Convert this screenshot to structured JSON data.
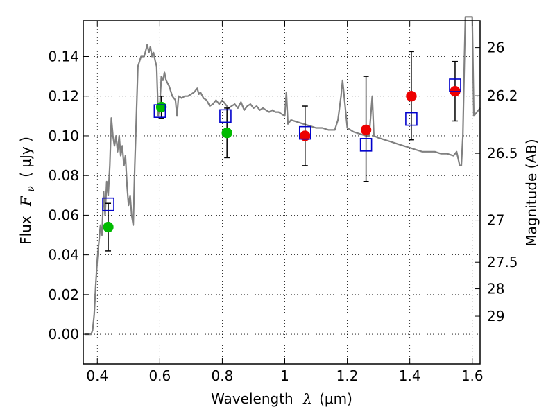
{
  "chart_data": {
    "type": "scatter",
    "xlabel": {
      "prefix": "Wavelength",
      "symbol": "λ",
      "unit": "(μm)"
    },
    "ylabel": {
      "prefix": "Flux",
      "symbol": "F",
      "subscript": "ν",
      "unit": "( μJy )"
    },
    "y2label": "Magnitude (AB)",
    "xlim": [
      0.355,
      1.625
    ],
    "ylim": [
      -0.015,
      0.158
    ],
    "xticks": [
      0.4,
      0.6,
      0.8,
      1.0,
      1.2,
      1.4,
      1.6
    ],
    "xtick_labels": [
      "0.4",
      "0.6",
      "0.8",
      "1",
      "1.2",
      "1.4",
      "1.6"
    ],
    "yticks": [
      0.0,
      0.02,
      0.04,
      0.06,
      0.08,
      0.1,
      0.12,
      0.14
    ],
    "ytick_labels": [
      "0.00",
      "0.02",
      "0.04",
      "0.06",
      "0.08",
      "0.10",
      "0.12",
      "0.14"
    ],
    "y2ticks": [
      {
        "label": "26",
        "flux": 0.1445
      },
      {
        "label": "26.2",
        "flux": 0.1202
      },
      {
        "label": "26.5",
        "flux": 0.0912
      },
      {
        "label": "27",
        "flux": 0.0575
      },
      {
        "label": "27.5",
        "flux": 0.0363
      },
      {
        "label": "28",
        "flux": 0.0229
      },
      {
        "label": "29",
        "flux": 0.0091
      }
    ],
    "grid": true,
    "colors": {
      "model": "#808080",
      "green_points": "#00bb00",
      "red_points": "#ee0000",
      "model_boxes": "#0000cc",
      "errorbars": "#000000"
    },
    "series": [
      {
        "type": "line",
        "points": [
          [
            0.36,
            0.0
          ],
          [
            0.38,
            0.0
          ],
          [
            0.385,
            0.002
          ],
          [
            0.39,
            0.01
          ],
          [
            0.395,
            0.025
          ],
          [
            0.4,
            0.038
          ],
          [
            0.41,
            0.055
          ],
          [
            0.415,
            0.05
          ],
          [
            0.42,
            0.072
          ],
          [
            0.425,
            0.06
          ],
          [
            0.43,
            0.077
          ],
          [
            0.435,
            0.07
          ],
          [
            0.44,
            0.085
          ],
          [
            0.445,
            0.109
          ],
          [
            0.45,
            0.1
          ],
          [
            0.455,
            0.095
          ],
          [
            0.46,
            0.1
          ],
          [
            0.465,
            0.092
          ],
          [
            0.47,
            0.1
          ],
          [
            0.475,
            0.09
          ],
          [
            0.48,
            0.095
          ],
          [
            0.485,
            0.085
          ],
          [
            0.49,
            0.09
          ],
          [
            0.495,
            0.075
          ],
          [
            0.5,
            0.065
          ],
          [
            0.505,
            0.07
          ],
          [
            0.51,
            0.06
          ],
          [
            0.515,
            0.055
          ],
          [
            0.52,
            0.085
          ],
          [
            0.525,
            0.11
          ],
          [
            0.53,
            0.135
          ],
          [
            0.54,
            0.14
          ],
          [
            0.55,
            0.14
          ],
          [
            0.555,
            0.143
          ],
          [
            0.56,
            0.146
          ],
          [
            0.565,
            0.142
          ],
          [
            0.57,
            0.145
          ],
          [
            0.575,
            0.14
          ],
          [
            0.58,
            0.142
          ],
          [
            0.585,
            0.138
          ],
          [
            0.59,
            0.135
          ],
          [
            0.595,
            0.11
          ],
          [
            0.6,
            0.115
          ],
          [
            0.605,
            0.13
          ],
          [
            0.61,
            0.128
          ],
          [
            0.615,
            0.132
          ],
          [
            0.62,
            0.128
          ],
          [
            0.63,
            0.125
          ],
          [
            0.64,
            0.12
          ],
          [
            0.65,
            0.118
          ],
          [
            0.655,
            0.11
          ],
          [
            0.66,
            0.12
          ],
          [
            0.67,
            0.119
          ],
          [
            0.68,
            0.12
          ],
          [
            0.69,
            0.12
          ],
          [
            0.7,
            0.121
          ],
          [
            0.71,
            0.122
          ],
          [
            0.72,
            0.124
          ],
          [
            0.725,
            0.121
          ],
          [
            0.73,
            0.122
          ],
          [
            0.74,
            0.119
          ],
          [
            0.75,
            0.118
          ],
          [
            0.76,
            0.115
          ],
          [
            0.77,
            0.116
          ],
          [
            0.78,
            0.118
          ],
          [
            0.79,
            0.116
          ],
          [
            0.8,
            0.118
          ],
          [
            0.81,
            0.116
          ],
          [
            0.82,
            0.114
          ],
          [
            0.83,
            0.115
          ],
          [
            0.84,
            0.116
          ],
          [
            0.85,
            0.114
          ],
          [
            0.86,
            0.117
          ],
          [
            0.87,
            0.113
          ],
          [
            0.88,
            0.115
          ],
          [
            0.89,
            0.116
          ],
          [
            0.9,
            0.114
          ],
          [
            0.91,
            0.115
          ],
          [
            0.92,
            0.113
          ],
          [
            0.93,
            0.114
          ],
          [
            0.94,
            0.113
          ],
          [
            0.95,
            0.112
          ],
          [
            0.96,
            0.113
          ],
          [
            0.97,
            0.112
          ],
          [
            0.98,
            0.112
          ],
          [
            0.99,
            0.111
          ],
          [
            1.0,
            0.11
          ],
          [
            1.005,
            0.122
          ],
          [
            1.01,
            0.106
          ],
          [
            1.02,
            0.108
          ],
          [
            1.04,
            0.107
          ],
          [
            1.06,
            0.106
          ],
          [
            1.08,
            0.105
          ],
          [
            1.1,
            0.104
          ],
          [
            1.12,
            0.104
          ],
          [
            1.14,
            0.103
          ],
          [
            1.16,
            0.103
          ],
          [
            1.17,
            0.108
          ],
          [
            1.18,
            0.12
          ],
          [
            1.185,
            0.128
          ],
          [
            1.19,
            0.12
          ],
          [
            1.2,
            0.104
          ],
          [
            1.22,
            0.102
          ],
          [
            1.24,
            0.101
          ],
          [
            1.26,
            0.1
          ],
          [
            1.27,
            0.1
          ],
          [
            1.28,
            0.12
          ],
          [
            1.285,
            0.1
          ],
          [
            1.3,
            0.099
          ],
          [
            1.32,
            0.098
          ],
          [
            1.34,
            0.097
          ],
          [
            1.36,
            0.096
          ],
          [
            1.38,
            0.095
          ],
          [
            1.4,
            0.094
          ],
          [
            1.42,
            0.093
          ],
          [
            1.44,
            0.092
          ],
          [
            1.46,
            0.092
          ],
          [
            1.48,
            0.092
          ],
          [
            1.5,
            0.091
          ],
          [
            1.52,
            0.091
          ],
          [
            1.54,
            0.09
          ],
          [
            1.55,
            0.092
          ],
          [
            1.56,
            0.085
          ],
          [
            1.565,
            0.085
          ],
          [
            1.57,
            0.1
          ],
          [
            1.575,
            0.14
          ],
          [
            1.578,
            0.16
          ],
          [
            1.6,
            0.16
          ],
          [
            1.605,
            0.11
          ],
          [
            1.61,
            0.111
          ],
          [
            1.62,
            0.113
          ],
          [
            1.625,
            0.114
          ]
        ]
      },
      {
        "type": "errorbar",
        "points": [
          {
            "x": 0.435,
            "y": 0.054,
            "ylow": 0.042,
            "yhigh": 0.066
          },
          {
            "x": 0.605,
            "y": 0.1145,
            "ylow": 0.109,
            "yhigh": 0.12
          },
          {
            "x": 0.815,
            "y": 0.1015,
            "ylow": 0.089,
            "yhigh": 0.114
          },
          {
            "x": 1.065,
            "y": 0.1,
            "ylow": 0.085,
            "yhigh": 0.115
          },
          {
            "x": 1.26,
            "y": 0.103,
            "ylow": 0.077,
            "yhigh": 0.13
          },
          {
            "x": 1.405,
            "y": 0.12,
            "ylow": 0.098,
            "yhigh": 0.1425
          },
          {
            "x": 1.545,
            "y": 0.1225,
            "ylow": 0.1075,
            "yhigh": 0.1375
          }
        ]
      },
      {
        "type": "scatter",
        "marker": "circle",
        "color": "green",
        "points": [
          {
            "x": 0.435,
            "y": 0.054
          },
          {
            "x": 0.605,
            "y": 0.1145
          },
          {
            "x": 0.815,
            "y": 0.1015
          }
        ]
      },
      {
        "type": "scatter",
        "marker": "circle",
        "color": "red",
        "points": [
          {
            "x": 1.065,
            "y": 0.1
          },
          {
            "x": 1.26,
            "y": 0.103
          },
          {
            "x": 1.405,
            "y": 0.12
          },
          {
            "x": 1.545,
            "y": 0.1225
          }
        ]
      },
      {
        "type": "scatter",
        "marker": "square-open",
        "color": "blue",
        "points": [
          {
            "x": 0.435,
            "y": 0.0655
          },
          {
            "x": 0.6,
            "y": 0.1125
          },
          {
            "x": 0.81,
            "y": 0.11
          },
          {
            "x": 1.065,
            "y": 0.1015
          },
          {
            "x": 1.26,
            "y": 0.0955
          },
          {
            "x": 1.405,
            "y": 0.1085
          },
          {
            "x": 1.545,
            "y": 0.1255
          }
        ]
      }
    ]
  }
}
